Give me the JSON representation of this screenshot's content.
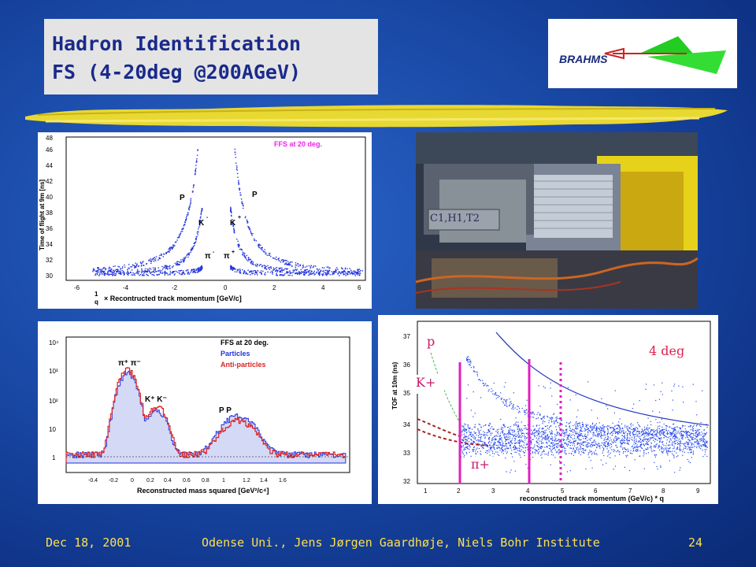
{
  "title": {
    "line1": "Hadron Identification",
    "line2": "FS (4-20deg @200AGeV)"
  },
  "logo": {
    "text": "BRAHMS"
  },
  "panel_tl": {
    "legend": "FFS at 20 deg.",
    "ylabel": "Time of flight at 9m [ns]",
    "xlabel_prefix": "1",
    "xlabel_q": "q",
    "xlabel": "× Recontructed track momentum [GeV/c]",
    "yticks": [
      "30",
      "32",
      "34",
      "36",
      "38",
      "40",
      "42",
      "44",
      "46",
      "48"
    ],
    "xticks": [
      "-6",
      "-4",
      "-2",
      "0",
      "2",
      "4",
      "6"
    ],
    "labels": {
      "pbar": "P",
      "p": "P",
      "kminus": "K",
      "kplus": "K",
      "piminus": "π",
      "piplus": "π",
      "minus": "-",
      "plus": "+"
    }
  },
  "photo": {
    "label": "C1,H1,T2"
  },
  "panel_bl": {
    "legend1": "FFS at 20 deg.",
    "legend2": "Particles",
    "legend3": "Anti-particles",
    "legend_colors": {
      "particles": "#2233dd",
      "anti": "#dd2222"
    },
    "xlabel": "Reconstructed mass squared [GeV²/c⁴]",
    "yticks": [
      "1",
      "10",
      "10²",
      "10³",
      "10⁴"
    ],
    "xticks": [
      "-0.4",
      "-0.2",
      "0",
      "0.2",
      "0.4",
      "0.6",
      "0.8",
      "1",
      "1.2",
      "1.4",
      "1.6"
    ],
    "peak_labels": {
      "pi": "π⁺ π⁻",
      "k": "K⁺ K⁻",
      "p": "P P"
    }
  },
  "panel_br": {
    "ylabel": "TOF at 10m (ns)",
    "xlabel": "reconstructed track momentum (GeV/c) * q",
    "yticks": [
      "32",
      "33",
      "34",
      "35",
      "36",
      "37"
    ],
    "xticks": [
      "1",
      "2",
      "3",
      "4",
      "5",
      "6",
      "7",
      "8",
      "9"
    ],
    "label_p": "p",
    "label_k": "K+",
    "label_pi": "π+",
    "label_deg": "4 deg"
  },
  "footer": {
    "date": "Dec 18, 2001",
    "credit": "Odense Uni., Jens Jørgen Gaardhøje, Niels Bohr Institute",
    "page": "24"
  }
}
